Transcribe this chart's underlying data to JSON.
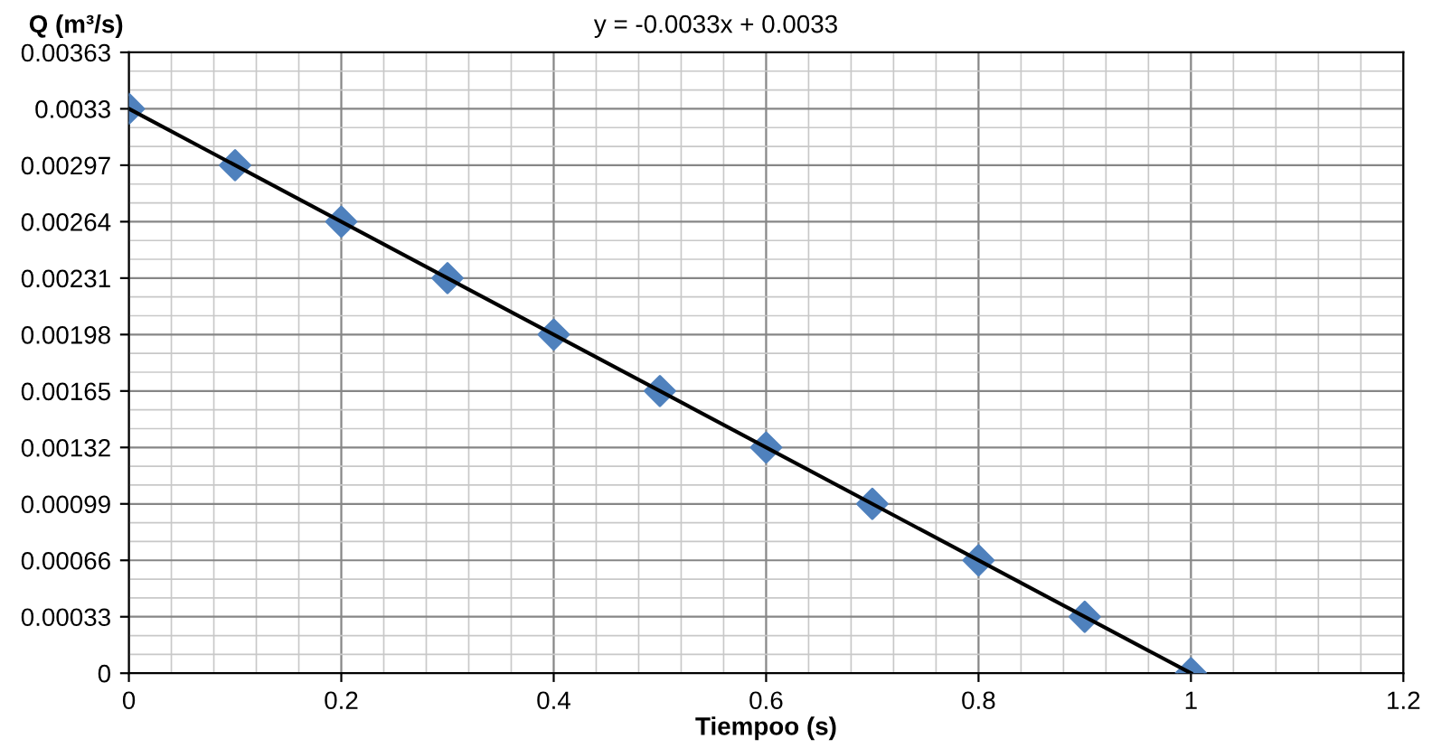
{
  "chart_data": {
    "type": "scatter",
    "xlabel": "Tiempoo (s)",
    "ylabel": "Q (m³/s)",
    "annotations": [
      "y = -0.0033x + 0.0033"
    ],
    "series": [
      {
        "color": "#4f81bd",
        "marker": "diamond",
        "x": [
          0,
          0.1,
          0.2,
          0.3,
          0.4,
          0.5,
          0.6,
          0.7,
          0.8,
          0.9,
          1
        ],
        "values": [
          0.0033,
          0.00297,
          0.00264,
          0.00231,
          0.00198,
          0.00165,
          0.00132,
          0.00099,
          0.00066,
          0.00033,
          0
        ]
      },
      {
        "type": "line",
        "color": "#000000",
        "marker": "none",
        "x": [
          0,
          1
        ],
        "values": [
          0.0033,
          0
        ]
      }
    ],
    "xlim": [
      0,
      1.2
    ],
    "xticks": [
      0,
      0.2,
      0.4,
      0.6,
      0.8,
      1,
      1.2
    ],
    "ylim": [
      0,
      0.00363
    ],
    "yticks": [
      0,
      0.00033,
      0.00066,
      0.00099,
      0.00132,
      0.00165,
      0.00198,
      0.00231,
      0.00264,
      0.00297,
      0.0033,
      0.00363
    ],
    "grid": true,
    "legend": false
  }
}
